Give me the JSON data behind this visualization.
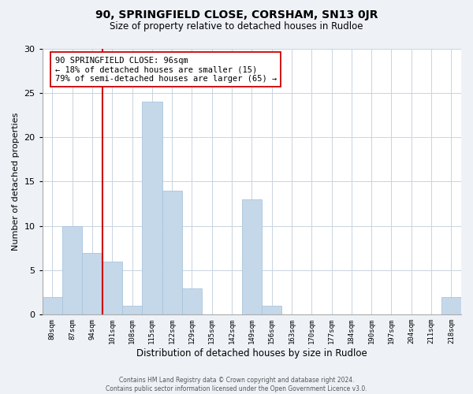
{
  "title": "90, SPRINGFIELD CLOSE, CORSHAM, SN13 0JR",
  "subtitle": "Size of property relative to detached houses in Rudloe",
  "xlabel": "Distribution of detached houses by size in Rudloe",
  "ylabel": "Number of detached properties",
  "bar_color": "#c5d8ea",
  "bar_edge_color": "#a8c4dc",
  "categories": [
    "80sqm",
    "87sqm",
    "94sqm",
    "101sqm",
    "108sqm",
    "115sqm",
    "122sqm",
    "129sqm",
    "135sqm",
    "142sqm",
    "149sqm",
    "156sqm",
    "163sqm",
    "170sqm",
    "177sqm",
    "184sqm",
    "190sqm",
    "197sqm",
    "204sqm",
    "211sqm",
    "218sqm"
  ],
  "values": [
    2,
    10,
    7,
    6,
    1,
    24,
    14,
    3,
    0,
    0,
    13,
    1,
    0,
    0,
    0,
    0,
    0,
    0,
    0,
    0,
    2
  ],
  "ylim": [
    0,
    30
  ],
  "yticks": [
    0,
    5,
    10,
    15,
    20,
    25,
    30
  ],
  "redline_x": 2.5,
  "marker_line_color": "#cc0000",
  "annotation_title": "90 SPRINGFIELD CLOSE: 96sqm",
  "annotation_line1": "← 18% of detached houses are smaller (15)",
  "annotation_line2": "79% of semi-detached houses are larger (65) →",
  "annotation_box_color": "#ffffff",
  "annotation_box_edge": "#cc0000",
  "footer_line1": "Contains HM Land Registry data © Crown copyright and database right 2024.",
  "footer_line2": "Contains public sector information licensed under the Open Government Licence v3.0.",
  "background_color": "#eef2f7",
  "plot_bg_color": "#ffffff",
  "grid_color": "#c8d4e0"
}
